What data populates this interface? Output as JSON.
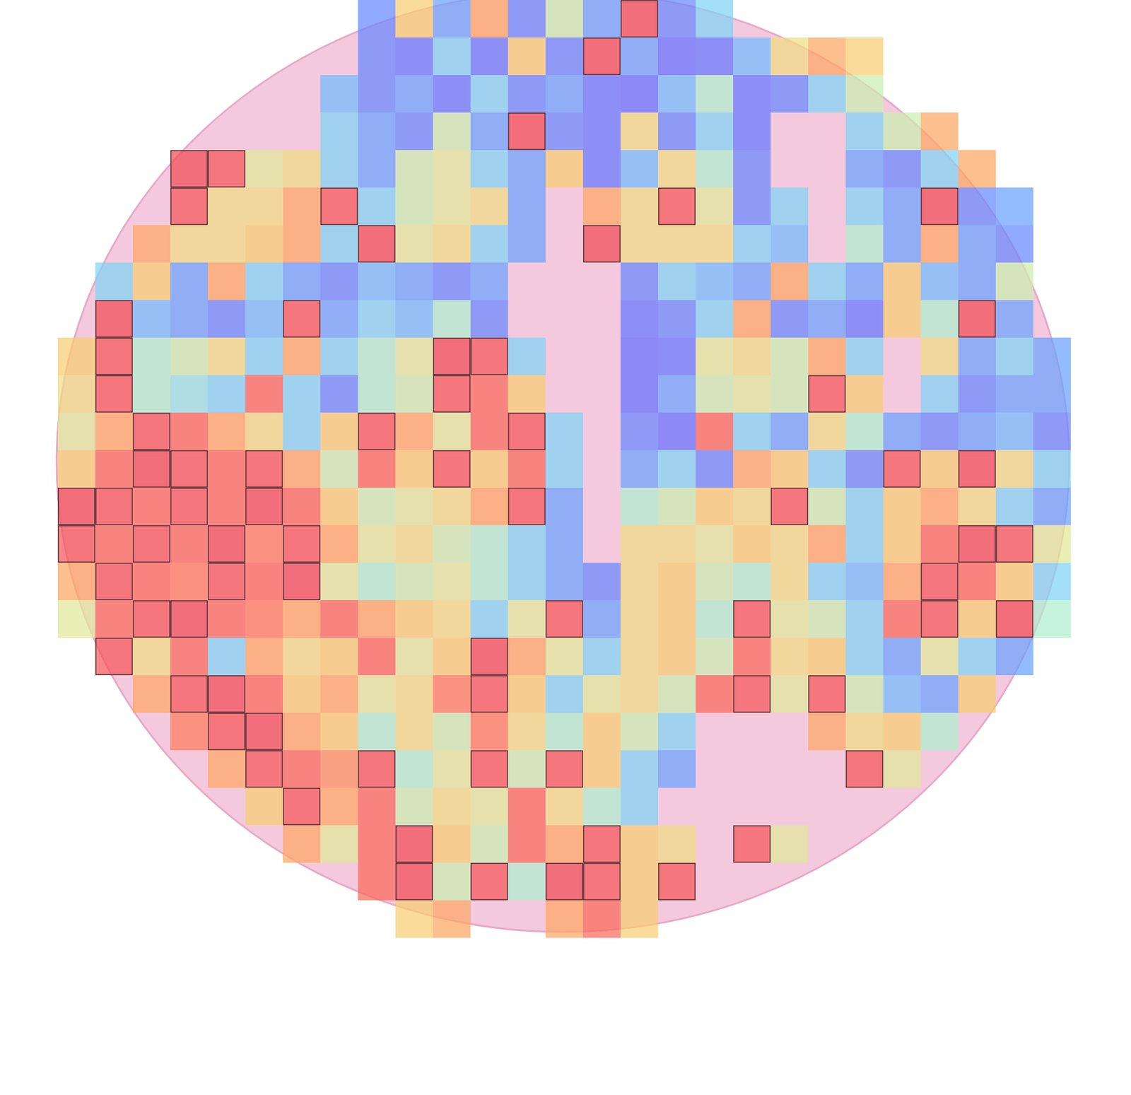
{
  "chart_data": {
    "type": "heatmap",
    "tick_labels": false,
    "color_range": [
      0,
      1
    ],
    "colors": [
      "#6b45ff",
      "#5f8bff",
      "#7ff0ff",
      "#f2f58c",
      "#ffb45e",
      "#ff6f5e",
      "#e8304f"
    ],
    "highlight_min": 0.9,
    "cells": [
      [
        null,
        null,
        null,
        null,
        null,
        null,
        null,
        null,
        0.15,
        0.6,
        0.2,
        0.7,
        0.15,
        0.45,
        0.2,
        0.93,
        0.15,
        0.3,
        null,
        null,
        null,
        null,
        null,
        null,
        null,
        null,
        null
      ],
      [
        null,
        null,
        null,
        null,
        null,
        null,
        null,
        null,
        0.15,
        0.12,
        0.3,
        0.12,
        0.6,
        0.15,
        0.93,
        0.2,
        0.1,
        0.12,
        0.25,
        0.55,
        0.7,
        0.6,
        null,
        null,
        null,
        null,
        null
      ],
      [
        null,
        null,
        null,
        null,
        null,
        null,
        null,
        0.25,
        0.15,
        0.2,
        0.12,
        0.3,
        0.15,
        0.2,
        0.12,
        0.1,
        0.25,
        0.4,
        0.12,
        0.15,
        0.3,
        0.45,
        null,
        null,
        null,
        null,
        null
      ],
      [
        null,
        null,
        null,
        null,
        null,
        null,
        null,
        0.3,
        0.2,
        0.15,
        0.45,
        0.2,
        0.93,
        0.15,
        0.12,
        0.55,
        0.15,
        0.3,
        0.12,
        null,
        null,
        0.3,
        0.45,
        0.7,
        null,
        null,
        null
      ],
      [
        null,
        null,
        null,
        0.93,
        0.9,
        0.5,
        0.55,
        0.3,
        0.2,
        0.45,
        0.5,
        0.3,
        0.2,
        0.6,
        0.12,
        0.25,
        0.55,
        0.4,
        0.15,
        null,
        null,
        0.2,
        0.15,
        0.3,
        0.7,
        null,
        null
      ],
      [
        null,
        null,
        null,
        0.9,
        0.55,
        0.55,
        0.7,
        0.9,
        0.3,
        0.45,
        0.5,
        0.55,
        0.2,
        null,
        0.7,
        0.55,
        0.9,
        0.5,
        0.15,
        0.3,
        null,
        0.3,
        0.2,
        0.93,
        0.15,
        0.2,
        null
      ],
      [
        null,
        null,
        0.7,
        0.55,
        0.55,
        0.6,
        0.7,
        0.3,
        0.93,
        0.5,
        0.55,
        0.3,
        0.2,
        null,
        0.93,
        0.55,
        0.55,
        0.55,
        0.3,
        0.25,
        null,
        0.4,
        0.2,
        0.7,
        0.2,
        0.15,
        null
      ],
      [
        null,
        0.3,
        0.6,
        0.2,
        0.7,
        0.3,
        0.2,
        0.15,
        0.25,
        0.2,
        0.15,
        0.2,
        null,
        null,
        null,
        0.15,
        0.3,
        0.25,
        0.2,
        0.7,
        0.3,
        0.2,
        0.6,
        0.25,
        0.2,
        0.45,
        null
      ],
      [
        null,
        0.93,
        0.25,
        0.2,
        0.15,
        0.25,
        0.9,
        0.2,
        0.3,
        0.25,
        0.4,
        0.15,
        null,
        null,
        null,
        0.12,
        0.15,
        0.3,
        0.7,
        0.15,
        0.2,
        0.12,
        0.6,
        0.4,
        0.93,
        0.2,
        null
      ],
      [
        0.6,
        0.9,
        0.4,
        0.45,
        0.55,
        0.3,
        0.7,
        0.3,
        0.4,
        0.5,
        0.93,
        0.9,
        0.3,
        null,
        null,
        0.1,
        0.12,
        0.5,
        0.55,
        0.45,
        0.7,
        0.3,
        null,
        0.55,
        0.2,
        0.3,
        0.2
      ],
      [
        0.55,
        0.9,
        0.4,
        0.35,
        0.3,
        0.85,
        0.3,
        0.15,
        0.4,
        0.45,
        0.9,
        0.85,
        0.6,
        null,
        null,
        0.1,
        0.2,
        0.45,
        0.5,
        0.45,
        0.9,
        0.6,
        null,
        0.3,
        0.15,
        0.2,
        0.2
      ],
      [
        0.5,
        0.7,
        0.9,
        0.85,
        0.7,
        0.55,
        0.3,
        0.6,
        0.9,
        0.7,
        0.5,
        0.85,
        0.9,
        0.3,
        null,
        0.15,
        0.1,
        0.85,
        0.3,
        0.2,
        0.55,
        0.4,
        0.2,
        0.15,
        0.2,
        0.25,
        0.15
      ],
      [
        0.6,
        0.85,
        0.93,
        0.9,
        0.85,
        0.9,
        0.7,
        0.45,
        0.85,
        0.6,
        0.9,
        0.6,
        0.85,
        0.3,
        null,
        0.2,
        0.3,
        0.15,
        0.7,
        0.6,
        0.3,
        0.15,
        0.9,
        0.6,
        0.93,
        0.55,
        0.3
      ],
      [
        0.93,
        0.9,
        0.85,
        0.9,
        0.85,
        0.93,
        0.85,
        0.6,
        0.45,
        0.5,
        0.55,
        0.7,
        0.9,
        0.2,
        null,
        0.4,
        0.45,
        0.6,
        0.55,
        0.9,
        0.45,
        0.3,
        0.6,
        0.7,
        0.55,
        0.3,
        0.2
      ],
      [
        0.9,
        0.85,
        0.9,
        0.85,
        0.93,
        0.8,
        0.9,
        0.7,
        0.5,
        0.55,
        0.45,
        0.4,
        0.3,
        0.2,
        null,
        0.55,
        0.55,
        0.5,
        0.6,
        0.55,
        0.7,
        0.3,
        0.6,
        0.85,
        0.93,
        0.9,
        0.5
      ],
      [
        0.7,
        0.9,
        0.85,
        0.8,
        0.9,
        0.85,
        0.93,
        0.5,
        0.4,
        0.45,
        0.5,
        0.4,
        0.3,
        0.2,
        0.15,
        0.55,
        0.6,
        0.45,
        0.4,
        0.55,
        0.3,
        0.25,
        0.7,
        0.9,
        0.85,
        0.6,
        0.3
      ],
      [
        0.5,
        0.85,
        0.9,
        0.93,
        0.85,
        0.8,
        0.7,
        0.85,
        0.7,
        0.6,
        0.55,
        0.3,
        0.5,
        0.9,
        0.2,
        0.55,
        0.6,
        0.4,
        0.9,
        0.5,
        0.45,
        0.3,
        0.85,
        0.9,
        0.6,
        0.93,
        0.4
      ],
      [
        null,
        0.9,
        0.55,
        0.85,
        0.3,
        0.7,
        0.55,
        0.6,
        0.85,
        0.5,
        0.6,
        0.93,
        0.7,
        0.5,
        0.3,
        0.55,
        0.6,
        0.45,
        0.85,
        0.55,
        0.6,
        0.3,
        0.2,
        0.5,
        0.3,
        0.2,
        null
      ],
      [
        null,
        null,
        0.7,
        0.9,
        0.93,
        0.85,
        0.6,
        0.7,
        0.5,
        0.55,
        0.8,
        0.9,
        0.6,
        0.3,
        0.5,
        0.55,
        0.45,
        0.85,
        0.9,
        0.5,
        0.9,
        0.45,
        0.25,
        0.2,
        0.6,
        null,
        null
      ],
      [
        null,
        null,
        null,
        0.8,
        0.9,
        0.93,
        0.7,
        0.6,
        0.4,
        0.55,
        0.45,
        0.8,
        0.55,
        0.4,
        0.6,
        0.45,
        0.3,
        null,
        null,
        null,
        0.7,
        0.55,
        0.6,
        0.4,
        null,
        null,
        null
      ],
      [
        null,
        null,
        null,
        null,
        0.7,
        0.9,
        0.85,
        0.75,
        0.9,
        0.4,
        0.5,
        0.9,
        0.45,
        0.9,
        0.6,
        0.3,
        0.2,
        null,
        null,
        null,
        null,
        0.9,
        0.5,
        null,
        null,
        null,
        null
      ],
      [
        null,
        null,
        null,
        null,
        null,
        0.6,
        0.9,
        0.7,
        0.85,
        0.45,
        0.55,
        0.5,
        0.85,
        0.55,
        0.4,
        0.3,
        null,
        null,
        null,
        null,
        null,
        null,
        null,
        null,
        null,
        null,
        null
      ],
      [
        null,
        null,
        null,
        null,
        null,
        null,
        0.7,
        0.5,
        0.85,
        0.93,
        0.6,
        0.45,
        0.85,
        0.7,
        0.9,
        0.6,
        0.55,
        null,
        0.9,
        0.5,
        null,
        null,
        null,
        null,
        null,
        null,
        null
      ],
      [
        null,
        null,
        null,
        null,
        null,
        null,
        null,
        null,
        0.85,
        0.93,
        0.45,
        0.9,
        0.4,
        0.93,
        0.9,
        0.6,
        0.9,
        null,
        null,
        null,
        null,
        null,
        null,
        null,
        null,
        null,
        null
      ],
      [
        null,
        null,
        null,
        null,
        null,
        null,
        null,
        null,
        null,
        0.6,
        0.7,
        null,
        null,
        0.7,
        0.85,
        0.6,
        null,
        null,
        null,
        null,
        null,
        null,
        null,
        null,
        null,
        null,
        null
      ]
    ]
  }
}
